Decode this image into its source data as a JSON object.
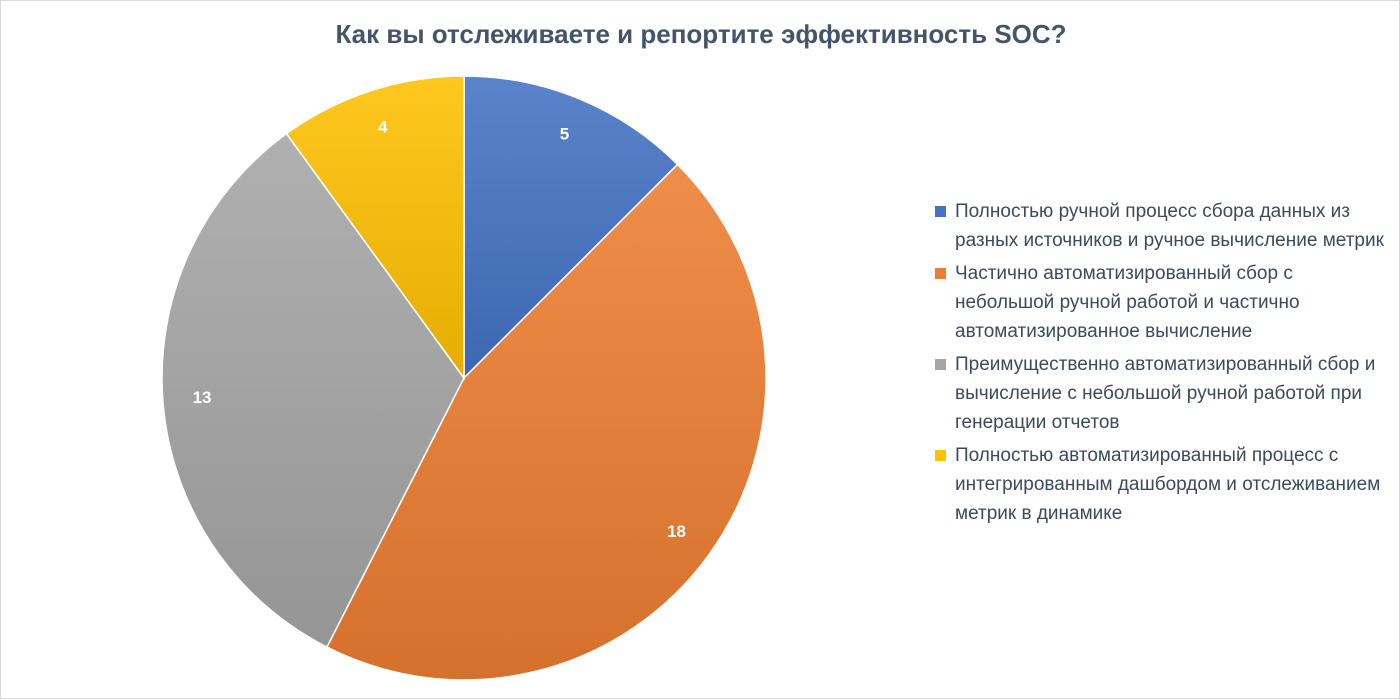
{
  "chart_data": {
    "type": "pie",
    "title": "Как вы отслеживаете и репортите эффективность SOC?",
    "categories": [
      "Полностью ручной процесс сбора данных из разных источников и ручное вычисление метрик",
      "Частично автоматизированный сбор с небольшой ручной работой и частично автоматизированное вычисление",
      "Преимущественно автоматизированный сбор и вычисление с небольшой ручной работой при генерации отчетов",
      "Полностью автоматизированный процесс с интегрированным дашбордом и отслеживанием метрик в динамике"
    ],
    "values": [
      5,
      18,
      13,
      4
    ],
    "data_labels": [
      "5",
      "18",
      "13",
      "4"
    ],
    "colors": [
      "#4472c4",
      "#ed7d31",
      "#a5a5a5",
      "#ffc000"
    ],
    "start_angle": "12 o'clock, clockwise",
    "legend_position": "right"
  }
}
